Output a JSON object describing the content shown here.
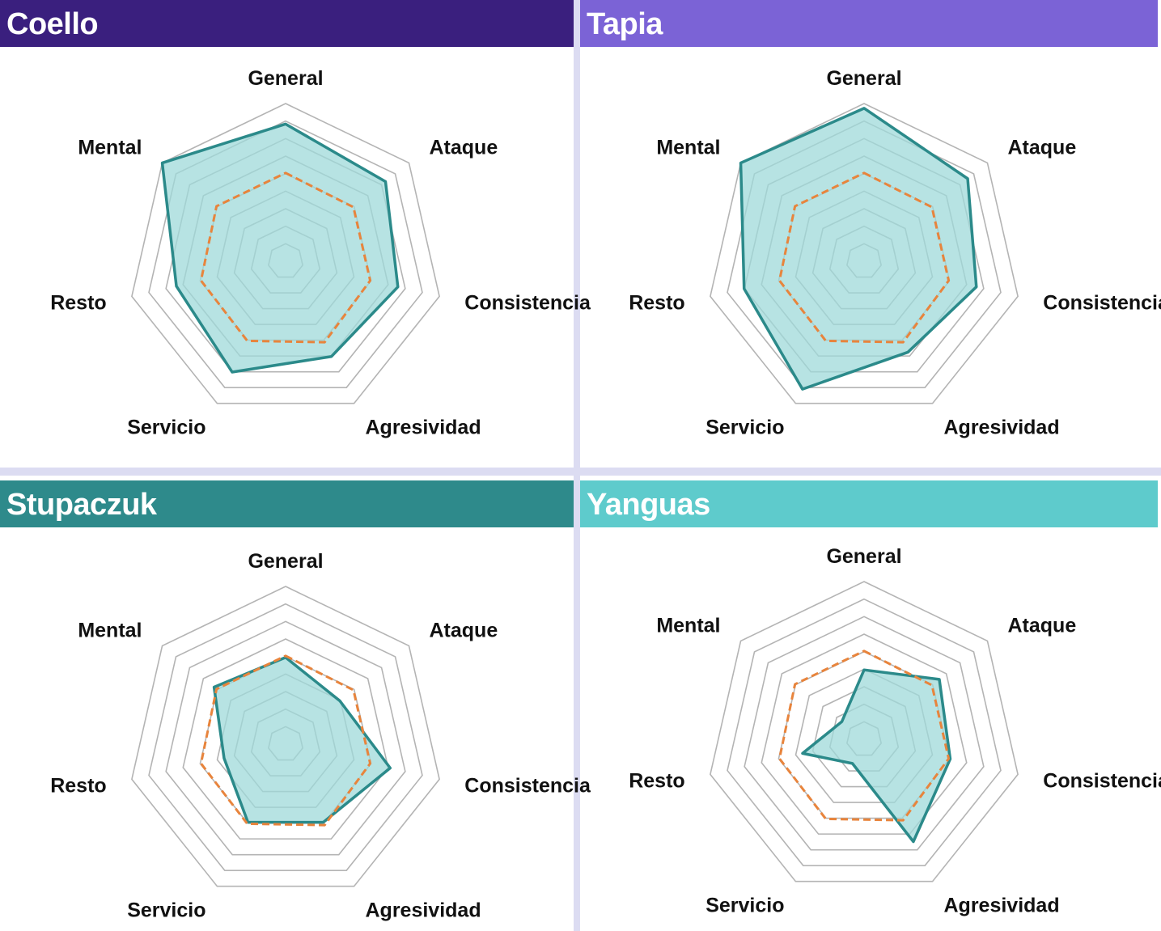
{
  "colors": {
    "header_coello": "#3a1f7e",
    "header_tapia": "#7b63d6",
    "header_stupaczuk": "#2e8a8b",
    "header_yanguas": "#5ecbcc",
    "player_line": "#2b8a8a",
    "player_fill": "#9fd9d9",
    "average_line": "#e8843c",
    "grid": "#b4b4b4",
    "divider": "#dcdcf2"
  },
  "chart_data": [
    {
      "type": "radar",
      "title": "Coello",
      "axes": [
        "General",
        "Ataque",
        "Consistencia",
        "Agresividad",
        "Servicio",
        "Resto",
        "Mental"
      ],
      "range": [
        0,
        100
      ],
      "grid_rings": 9,
      "series": [
        {
          "values": [
            87,
            81,
            73,
            67,
            78,
            71,
            100
          ]
        },
        {
          "values": [
            56,
            55,
            55,
            57,
            56,
            55,
            56
          ],
          "style": "dashed"
        }
      ]
    },
    {
      "type": "radar",
      "title": "Tapia",
      "axes": [
        "General",
        "Ataque",
        "Consistencia",
        "Agresividad",
        "Servicio",
        "Resto",
        "Mental"
      ],
      "range": [
        0,
        100
      ],
      "grid_rings": 9,
      "series": [
        {
          "values": [
            97,
            84,
            73,
            64,
            90,
            78,
            100
          ]
        },
        {
          "values": [
            56,
            55,
            55,
            57,
            56,
            55,
            56
          ],
          "style": "dashed"
        }
      ]
    },
    {
      "type": "radar",
      "title": "Stupaczuk",
      "axes": [
        "General",
        "Ataque",
        "Consistencia",
        "Agresividad",
        "Servicio",
        "Resto",
        "Mental"
      ],
      "range": [
        0,
        100
      ],
      "grid_rings": 9,
      "series": [
        {
          "values": [
            55,
            44,
            68,
            55,
            55,
            40,
            58
          ]
        },
        {
          "values": [
            56,
            55,
            55,
            57,
            56,
            55,
            56
          ],
          "style": "dashed"
        }
      ]
    },
    {
      "type": "radar",
      "title": "Yanguas",
      "axes": [
        "General",
        "Ataque",
        "Consistencia",
        "Agresividad",
        "Servicio",
        "Resto",
        "Mental"
      ],
      "range": [
        0,
        100
      ],
      "grid_rings": 9,
      "series": [
        {
          "values": [
            44,
            61,
            56,
            72,
            17,
            40,
            18
          ]
        },
        {
          "values": [
            56,
            55,
            55,
            57,
            56,
            55,
            56
          ],
          "style": "dashed"
        }
      ]
    }
  ]
}
